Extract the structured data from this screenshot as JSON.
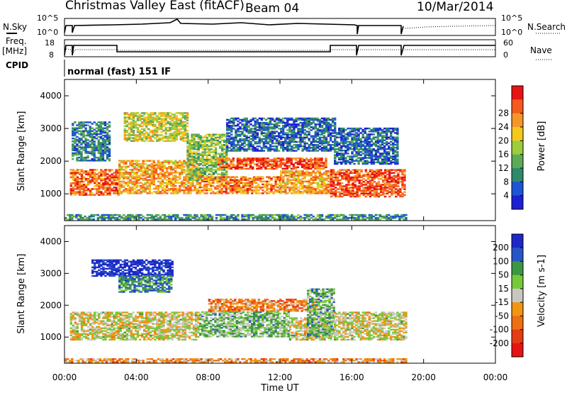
{
  "header": {
    "title": "Christmas Valley East (fitACF)",
    "beam": "Beam 04",
    "date": "10/Mar/2014"
  },
  "top_panel": {
    "left_label": "N.Sky",
    "right_label": "N.Search",
    "left_ticks": [
      "10^5",
      "10^0"
    ],
    "right_ticks": [
      "10^5",
      "10^0"
    ]
  },
  "freq_panel": {
    "left_label_line1": "Freq.",
    "left_label_line2": "[MHz]",
    "right_label": "Nave",
    "left_ticks": [
      "18",
      "8"
    ],
    "right_ticks": [
      "60",
      "0"
    ]
  },
  "cpid_panel": {
    "label": "CPID",
    "text": "normal (fast) 151 IF"
  },
  "chart_data": [
    {
      "type": "heatmap",
      "name": "power",
      "ylabel": "Slant Range [km]",
      "yticks": [
        "1000",
        "2000",
        "3000",
        "4000"
      ],
      "ylim": [
        180,
        4500
      ],
      "xlim_hours": [
        0,
        24
      ],
      "colorbar": {
        "label": "Power [dB]",
        "ticks": [
          "4",
          "8",
          "12",
          "16",
          "20",
          "24",
          "28"
        ],
        "colors": [
          "#1e1ed2",
          "#1e55d2",
          "#2e8a6a",
          "#5faa56",
          "#9bcd3c",
          "#f5c81e",
          "#f59628",
          "#f55a1e",
          "#e61414"
        ]
      },
      "bands": [
        {
          "t0": 0.3,
          "t1": 3.0,
          "r0": 950,
          "r1": 1750,
          "level": 0.8
        },
        {
          "t0": 3.0,
          "t1": 7.5,
          "r0": 1000,
          "r1": 2000,
          "level": 0.7
        },
        {
          "t0": 0.4,
          "t1": 2.5,
          "r0": 2000,
          "r1": 3200,
          "level": 0.25
        },
        {
          "t0": 3.3,
          "t1": 6.8,
          "r0": 2600,
          "r1": 3500,
          "level": 0.55
        },
        {
          "t0": 6.8,
          "t1": 9.0,
          "r0": 1400,
          "r1": 2800,
          "level": 0.45
        },
        {
          "t0": 7.5,
          "t1": 12.0,
          "r0": 1000,
          "r1": 1500,
          "level": 0.75
        },
        {
          "t0": 8.5,
          "t1": 14.5,
          "r0": 1750,
          "r1": 2100,
          "level": 0.85
        },
        {
          "t0": 12.0,
          "t1": 14.8,
          "r0": 1000,
          "r1": 1700,
          "level": 0.7
        },
        {
          "t0": 9.0,
          "t1": 15.0,
          "r0": 2300,
          "r1": 3300,
          "level": 0.2
        },
        {
          "t0": 14.8,
          "t1": 19.0,
          "r0": 900,
          "r1": 1750,
          "level": 0.85
        },
        {
          "t0": 15.0,
          "t1": 18.5,
          "r0": 1900,
          "r1": 3000,
          "level": 0.2
        },
        {
          "t0": 0.0,
          "t1": 19.0,
          "r0": 200,
          "r1": 350,
          "level": 0.3
        }
      ]
    },
    {
      "type": "heatmap",
      "name": "velocity",
      "ylabel": "Slant Range [km]",
      "yticks": [
        "1000",
        "2000",
        "3000",
        "4000"
      ],
      "ylim": [
        180,
        4500
      ],
      "xlim_hours": [
        0,
        24
      ],
      "xticks": [
        "00:00",
        "04:00",
        "08:00",
        "12:00",
        "16:00",
        "20:00",
        "00:00"
      ],
      "xlabel": "Time UT",
      "colorbar": {
        "label": "Velocity [m s-1]",
        "ticks": [
          "200",
          "100",
          "50",
          "15",
          "-15",
          "-50",
          "-100",
          "-200"
        ],
        "colors": [
          "#1e28c8",
          "#2855c8",
          "#3c9646",
          "#78c83c",
          "#c8c8c0",
          "#f09614",
          "#f06e14",
          "#e63c14",
          "#e61414"
        ]
      },
      "bands": [
        {
          "t0": 0.3,
          "t1": 7.5,
          "r0": 900,
          "r1": 1800,
          "level": 0.5
        },
        {
          "t0": 1.5,
          "t1": 6.0,
          "r0": 2900,
          "r1": 3400,
          "level": 0.05
        },
        {
          "t0": 3.0,
          "t1": 6.0,
          "r0": 2400,
          "r1": 2900,
          "level": 0.25
        },
        {
          "t0": 7.5,
          "t1": 12.5,
          "r0": 1000,
          "r1": 1800,
          "level": 0.38
        },
        {
          "t0": 8.0,
          "t1": 14.0,
          "r0": 1800,
          "r1": 2200,
          "level": 0.68
        },
        {
          "t0": 12.5,
          "t1": 14.8,
          "r0": 900,
          "r1": 1600,
          "level": 0.5
        },
        {
          "t0": 13.5,
          "t1": 15.0,
          "r0": 1000,
          "r1": 2500,
          "level": 0.35
        },
        {
          "t0": 15.0,
          "t1": 19.0,
          "r0": 900,
          "r1": 1800,
          "level": 0.5
        },
        {
          "t0": 0.0,
          "t1": 19.0,
          "r0": 200,
          "r1": 320,
          "level": 0.65
        }
      ]
    }
  ]
}
